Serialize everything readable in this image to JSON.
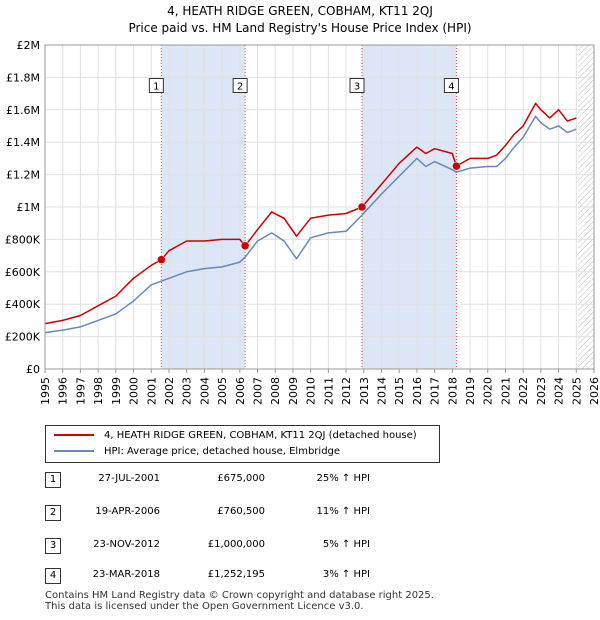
{
  "title": "4, HEATH RIDGE GREEN, COBHAM, KT11 2QJ",
  "subtitle": "Price paid vs. HM Land Registry's House Price Index (HPI)",
  "colors": {
    "price_line": "#cc0000",
    "hpi_line": "#6688bb",
    "shade": "#dde6f7",
    "marker": "#cc0000"
  },
  "chart_data": {
    "type": "line",
    "title": "4, HEATH RIDGE GREEN, COBHAM, KT11 2QJ",
    "subtitle": "Price paid vs. HM Land Registry's House Price Index (HPI)",
    "xlim": [
      1995,
      2026
    ],
    "ylim": [
      0,
      2000000
    ],
    "x_ticks": [
      "1995",
      "1996",
      "1997",
      "1998",
      "1999",
      "2000",
      "2001",
      "2002",
      "2003",
      "2004",
      "2005",
      "2006",
      "2007",
      "2008",
      "2009",
      "2010",
      "2011",
      "2012",
      "2013",
      "2014",
      "2015",
      "2016",
      "2017",
      "2018",
      "2019",
      "2020",
      "2021",
      "2022",
      "2023",
      "2024",
      "2025",
      "2026"
    ],
    "y_ticks": [
      {
        "value": 0,
        "label": "£0"
      },
      {
        "value": 200000,
        "label": "£200K"
      },
      {
        "value": 400000,
        "label": "£400K"
      },
      {
        "value": 600000,
        "label": "£600K"
      },
      {
        "value": 800000,
        "label": "£800K"
      },
      {
        "value": 1000000,
        "label": "£1M"
      },
      {
        "value": 1200000,
        "label": "£1.2M"
      },
      {
        "value": 1400000,
        "label": "£1.4M"
      },
      {
        "value": 1600000,
        "label": "£1.6M"
      },
      {
        "value": 1800000,
        "label": "£1.8M"
      },
      {
        "value": 2000000,
        "label": "£2M"
      }
    ],
    "shaded_periods": [
      [
        2001.57,
        2006.3
      ],
      [
        2012.9,
        2018.23
      ]
    ],
    "projection_start": 2025.1,
    "series": [
      {
        "name": "4, HEATH RIDGE GREEN, COBHAM, KT11 2QJ (detached house)",
        "color": "#cc0000",
        "points": [
          [
            1995,
            280000
          ],
          [
            1996,
            300000
          ],
          [
            1997,
            330000
          ],
          [
            1998,
            390000
          ],
          [
            1999,
            450000
          ],
          [
            2000,
            560000
          ],
          [
            2001,
            640000
          ],
          [
            2001.57,
            675000
          ],
          [
            2002,
            730000
          ],
          [
            2003,
            790000
          ],
          [
            2004,
            790000
          ],
          [
            2005,
            800000
          ],
          [
            2006,
            800000
          ],
          [
            2006.3,
            760500
          ],
          [
            2007,
            860000
          ],
          [
            2007.8,
            970000
          ],
          [
            2008.5,
            930000
          ],
          [
            2009.2,
            820000
          ],
          [
            2010,
            930000
          ],
          [
            2011,
            950000
          ],
          [
            2012,
            960000
          ],
          [
            2012.9,
            1000000
          ],
          [
            2014,
            1140000
          ],
          [
            2015,
            1270000
          ],
          [
            2016,
            1370000
          ],
          [
            2016.5,
            1330000
          ],
          [
            2017,
            1360000
          ],
          [
            2018,
            1330000
          ],
          [
            2018.23,
            1252195
          ],
          [
            2019,
            1300000
          ],
          [
            2020,
            1300000
          ],
          [
            2020.5,
            1320000
          ],
          [
            2021,
            1380000
          ],
          [
            2021.5,
            1450000
          ],
          [
            2022,
            1500000
          ],
          [
            2022.7,
            1640000
          ],
          [
            2023,
            1600000
          ],
          [
            2023.5,
            1550000
          ],
          [
            2024,
            1600000
          ],
          [
            2024.5,
            1530000
          ],
          [
            2025,
            1550000
          ]
        ]
      },
      {
        "name": "HPI: Average price, detached house, Elmbridge",
        "color": "#6688bb",
        "points": [
          [
            1995,
            225000
          ],
          [
            1996,
            240000
          ],
          [
            1997,
            260000
          ],
          [
            1998,
            300000
          ],
          [
            1999,
            340000
          ],
          [
            2000,
            420000
          ],
          [
            2001,
            520000
          ],
          [
            2002,
            560000
          ],
          [
            2003,
            600000
          ],
          [
            2004,
            620000
          ],
          [
            2005,
            630000
          ],
          [
            2006,
            660000
          ],
          [
            2006.3,
            690000
          ],
          [
            2007,
            790000
          ],
          [
            2007.8,
            840000
          ],
          [
            2008.5,
            790000
          ],
          [
            2009.2,
            680000
          ],
          [
            2010,
            810000
          ],
          [
            2011,
            840000
          ],
          [
            2012,
            850000
          ],
          [
            2012.9,
            950000
          ],
          [
            2014,
            1080000
          ],
          [
            2015,
            1190000
          ],
          [
            2016,
            1300000
          ],
          [
            2016.5,
            1250000
          ],
          [
            2017,
            1280000
          ],
          [
            2018,
            1230000
          ],
          [
            2018.23,
            1215000
          ],
          [
            2019,
            1240000
          ],
          [
            2020,
            1250000
          ],
          [
            2020.5,
            1250000
          ],
          [
            2021,
            1300000
          ],
          [
            2021.5,
            1370000
          ],
          [
            2022,
            1430000
          ],
          [
            2022.7,
            1560000
          ],
          [
            2023,
            1520000
          ],
          [
            2023.5,
            1480000
          ],
          [
            2024,
            1500000
          ],
          [
            2024.5,
            1460000
          ],
          [
            2025,
            1480000
          ]
        ]
      }
    ],
    "sales": [
      {
        "num": "1",
        "x": 2001.57,
        "value": 675000
      },
      {
        "num": "2",
        "x": 2006.3,
        "value": 760500
      },
      {
        "num": "3",
        "x": 2012.9,
        "value": 1000000
      },
      {
        "num": "4",
        "x": 2018.23,
        "value": 1252195
      }
    ],
    "marker_box_value": 1750000
  },
  "legend": {
    "price_label": "4, HEATH RIDGE GREEN, COBHAM, KT11 2QJ (detached house)",
    "hpi_label": "HPI: Average price, detached house, Elmbridge"
  },
  "sales_table": [
    {
      "num": "1",
      "date": "27-JUL-2001",
      "price": "£675,000",
      "hpi": "25% ↑ HPI"
    },
    {
      "num": "2",
      "date": "19-APR-2006",
      "price": "£760,500",
      "hpi": "11% ↑ HPI"
    },
    {
      "num": "3",
      "date": "23-NOV-2012",
      "price": "£1,000,000",
      "hpi": "5% ↑ HPI"
    },
    {
      "num": "4",
      "date": "23-MAR-2018",
      "price": "£1,252,195",
      "hpi": "3% ↑ HPI"
    }
  ],
  "footer": {
    "line1": "Contains HM Land Registry data © Crown copyright and database right 2025.",
    "line2": "This data is licensed under the Open Government Licence v3.0."
  }
}
